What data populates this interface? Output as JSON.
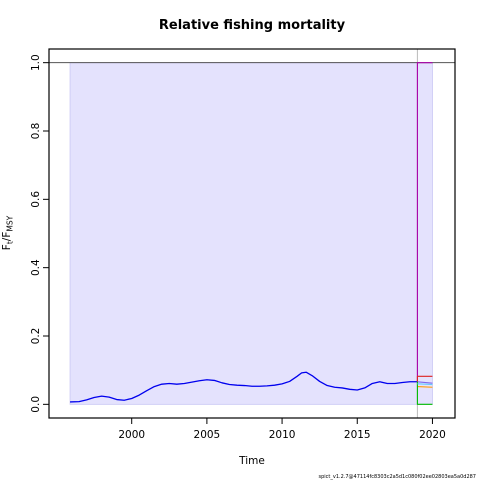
{
  "chart_data": {
    "type": "line",
    "title": "Relative fishing mortality",
    "xlabel": "Time",
    "ylabel_main": "F",
    "ylabel_sub1": "t",
    "ylabel_sep": "/F",
    "ylabel_sub2": "MSY",
    "xlim": [
      1994.5,
      2021.5
    ],
    "ylim": [
      -0.04,
      1.04
    ],
    "xticks": [
      2000,
      2005,
      2010,
      2015,
      2020
    ],
    "yticks": [
      "0.0",
      "0.2",
      "0.4",
      "0.6",
      "0.8",
      "1.0"
    ],
    "ytick_values": [
      0.0,
      0.2,
      0.4,
      0.6,
      0.8,
      1.0
    ],
    "reference_line": 1.0,
    "ci_band": {
      "x_start": 1995.9,
      "x_end": 2020,
      "lower": 0.0,
      "upper": 1.0,
      "color": "#e4e2fd"
    },
    "forecast_start": 2019.0,
    "series": [
      {
        "color": "#0000ee",
        "x": [
          1995.9,
          1996.5,
          1997.0,
          1997.5,
          1998.0,
          1998.5,
          1999.0,
          1999.5,
          2000.0,
          2000.5,
          2001.0,
          2001.5,
          2002.0,
          2002.5,
          2003.0,
          2003.5,
          2004.0,
          2004.5,
          2005.0,
          2005.5,
          2006.0,
          2006.5,
          2007.0,
          2007.5,
          2008.0,
          2008.5,
          2009.0,
          2009.5,
          2010.0,
          2010.5,
          2011.0,
          2011.3,
          2011.6,
          2012.0,
          2012.5,
          2013.0,
          2013.5,
          2014.0,
          2014.5,
          2015.0,
          2015.5,
          2016.0,
          2016.5,
          2017.0,
          2017.5,
          2018.0,
          2018.5,
          2019.0
        ],
        "y": [
          0.007,
          0.008,
          0.013,
          0.02,
          0.024,
          0.021,
          0.014,
          0.012,
          0.017,
          0.027,
          0.04,
          0.052,
          0.059,
          0.061,
          0.059,
          0.061,
          0.065,
          0.069,
          0.072,
          0.07,
          0.063,
          0.058,
          0.056,
          0.055,
          0.053,
          0.053,
          0.054,
          0.056,
          0.06,
          0.067,
          0.082,
          0.092,
          0.094,
          0.084,
          0.067,
          0.055,
          0.05,
          0.048,
          0.044,
          0.042,
          0.048,
          0.061,
          0.066,
          0.061,
          0.061,
          0.064,
          0.066,
          0.066
        ]
      },
      {
        "color": "#aa00aa",
        "x": [
          2019.0,
          2019.0,
          2020.0
        ],
        "y": [
          0.066,
          1.0,
          1.0
        ]
      },
      {
        "color": "#dd2222",
        "x": [
          2019.0,
          2019.0,
          2020.0
        ],
        "y": [
          0.066,
          0.082,
          0.082
        ]
      },
      {
        "color": "#ff9900",
        "x": [
          2019.0,
          2020.0
        ],
        "y": [
          0.052,
          0.05
        ]
      },
      {
        "color": "#7b68ee",
        "x": [
          2019.0,
          2020.0
        ],
        "y": [
          0.066,
          0.062
        ]
      },
      {
        "color": "#00bb00",
        "x": [
          2019.0,
          2019.0,
          2020.0
        ],
        "y": [
          0.066,
          0.0,
          0.0
        ]
      },
      {
        "color": "#66ccff",
        "x": [
          2019.0,
          2020.0
        ],
        "y": [
          0.06,
          0.058
        ]
      }
    ],
    "footer": "spict_v1.2.7@47114fc8303c2a5d1c080f02ee02803ea5a0d287"
  }
}
